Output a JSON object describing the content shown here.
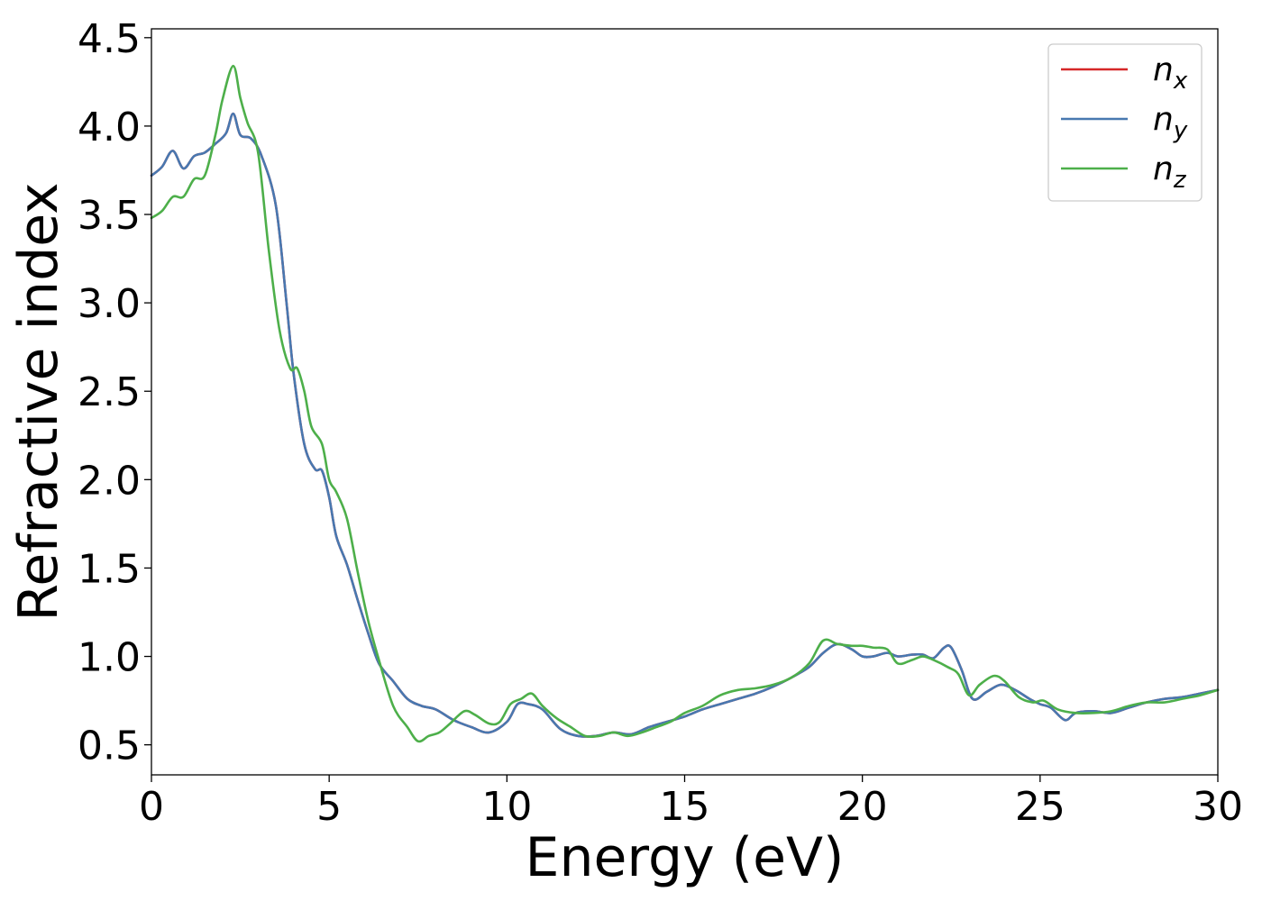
{
  "chart_data": {
    "type": "line",
    "title": "",
    "xlabel": "Energy (eV)",
    "ylabel": "Refractive index",
    "xlim": [
      0,
      30
    ],
    "ylim": [
      0.33,
      4.55
    ],
    "xticks": [
      0,
      5,
      10,
      15,
      20,
      25,
      30
    ],
    "yticks": [
      0.5,
      1.0,
      1.5,
      2.0,
      2.5,
      3.0,
      3.5,
      4.0,
      4.5
    ],
    "xtick_labels": [
      "0",
      "5",
      "10",
      "15",
      "20",
      "25",
      "30"
    ],
    "ytick_labels": [
      "0.5",
      "1.0",
      "1.5",
      "2.0",
      "2.5",
      "3.0",
      "3.5",
      "4.0",
      "4.5"
    ],
    "grid": false,
    "legend_position": "top-right",
    "series": [
      {
        "name": "n_x",
        "legend_base": "n",
        "legend_sub": "x",
        "color": "#d62728",
        "x": [
          0,
          0.3,
          0.6,
          0.9,
          1.2,
          1.5,
          1.8,
          2.1,
          2.3,
          2.5,
          2.8,
          3.1,
          3.5,
          3.8,
          4.0,
          4.3,
          4.6,
          4.8,
          5.0,
          5.2,
          5.5,
          5.8,
          6.1,
          6.4,
          6.8,
          7.2,
          7.6,
          8.0,
          8.5,
          9.0,
          9.5,
          10.0,
          10.3,
          10.6,
          11.0,
          11.5,
          12.0,
          12.5,
          13.0,
          13.5,
          14.0,
          14.5,
          15.0,
          15.5,
          16.0,
          16.5,
          17.0,
          17.5,
          18.0,
          18.5,
          18.9,
          19.3,
          19.7,
          20.0,
          20.3,
          20.7,
          21.0,
          21.4,
          21.7,
          22.0,
          22.3,
          22.5,
          22.8,
          23.1,
          23.5,
          23.9,
          24.3,
          24.7,
          25.0,
          25.3,
          25.7,
          26.0,
          26.5,
          27.0,
          27.5,
          28.0,
          28.5,
          29.0,
          29.5,
          30.0
        ],
        "y": [
          3.72,
          3.77,
          3.86,
          3.76,
          3.83,
          3.85,
          3.9,
          3.96,
          4.07,
          3.95,
          3.93,
          3.83,
          3.55,
          3.0,
          2.6,
          2.2,
          2.06,
          2.05,
          1.9,
          1.68,
          1.52,
          1.32,
          1.13,
          0.96,
          0.86,
          0.76,
          0.72,
          0.7,
          0.64,
          0.6,
          0.57,
          0.63,
          0.73,
          0.73,
          0.7,
          0.59,
          0.55,
          0.55,
          0.57,
          0.56,
          0.6,
          0.63,
          0.66,
          0.7,
          0.73,
          0.76,
          0.79,
          0.83,
          0.88,
          0.94,
          1.02,
          1.07,
          1.04,
          1.0,
          1.0,
          1.02,
          1.0,
          1.01,
          1.01,
          0.99,
          1.05,
          1.05,
          0.92,
          0.76,
          0.8,
          0.84,
          0.81,
          0.76,
          0.73,
          0.71,
          0.64,
          0.68,
          0.69,
          0.68,
          0.71,
          0.74,
          0.76,
          0.77,
          0.79,
          0.81
        ]
      },
      {
        "name": "n_y",
        "legend_base": "n",
        "legend_sub": "y",
        "color": "#4878b0",
        "x": [
          0,
          0.3,
          0.6,
          0.9,
          1.2,
          1.5,
          1.8,
          2.1,
          2.3,
          2.5,
          2.8,
          3.1,
          3.5,
          3.8,
          4.0,
          4.3,
          4.6,
          4.8,
          5.0,
          5.2,
          5.5,
          5.8,
          6.1,
          6.4,
          6.8,
          7.2,
          7.6,
          8.0,
          8.5,
          9.0,
          9.5,
          10.0,
          10.3,
          10.6,
          11.0,
          11.5,
          12.0,
          12.5,
          13.0,
          13.5,
          14.0,
          14.5,
          15.0,
          15.5,
          16.0,
          16.5,
          17.0,
          17.5,
          18.0,
          18.5,
          18.9,
          19.3,
          19.7,
          20.0,
          20.3,
          20.7,
          21.0,
          21.4,
          21.7,
          22.0,
          22.3,
          22.5,
          22.8,
          23.1,
          23.5,
          23.9,
          24.3,
          24.7,
          25.0,
          25.3,
          25.7,
          26.0,
          26.5,
          27.0,
          27.5,
          28.0,
          28.5,
          29.0,
          29.5,
          30.0
        ],
        "y": [
          3.72,
          3.77,
          3.86,
          3.76,
          3.83,
          3.85,
          3.9,
          3.96,
          4.07,
          3.95,
          3.93,
          3.83,
          3.55,
          3.0,
          2.6,
          2.2,
          2.06,
          2.05,
          1.9,
          1.68,
          1.52,
          1.32,
          1.13,
          0.96,
          0.86,
          0.76,
          0.72,
          0.7,
          0.64,
          0.6,
          0.57,
          0.63,
          0.73,
          0.73,
          0.7,
          0.59,
          0.55,
          0.55,
          0.57,
          0.56,
          0.6,
          0.63,
          0.66,
          0.7,
          0.73,
          0.76,
          0.79,
          0.83,
          0.88,
          0.94,
          1.02,
          1.07,
          1.04,
          1.0,
          1.0,
          1.02,
          1.0,
          1.01,
          1.01,
          0.99,
          1.05,
          1.05,
          0.92,
          0.76,
          0.8,
          0.84,
          0.81,
          0.76,
          0.73,
          0.71,
          0.64,
          0.68,
          0.69,
          0.68,
          0.71,
          0.74,
          0.76,
          0.77,
          0.79,
          0.81
        ]
      },
      {
        "name": "n_z",
        "legend_base": "n",
        "legend_sub": "z",
        "color": "#4daf4a",
        "x": [
          0,
          0.3,
          0.6,
          0.9,
          1.2,
          1.5,
          1.8,
          2.0,
          2.3,
          2.5,
          2.7,
          3.0,
          3.3,
          3.6,
          3.9,
          4.1,
          4.3,
          4.5,
          4.8,
          5.0,
          5.2,
          5.5,
          5.8,
          6.1,
          6.4,
          6.8,
          7.2,
          7.5,
          7.8,
          8.1,
          8.4,
          8.8,
          9.1,
          9.5,
          9.8,
          10.1,
          10.4,
          10.7,
          11.0,
          11.4,
          11.8,
          12.2,
          12.6,
          13.0,
          13.4,
          13.8,
          14.2,
          14.6,
          15.0,
          15.5,
          16.0,
          16.5,
          17.0,
          17.5,
          18.0,
          18.5,
          18.9,
          19.3,
          19.7,
          20.0,
          20.3,
          20.7,
          21.0,
          21.4,
          21.7,
          22.0,
          22.4,
          22.7,
          23.0,
          23.3,
          23.7,
          24.0,
          24.4,
          24.8,
          25.1,
          25.5,
          26.0,
          26.5,
          27.0,
          27.5,
          28.0,
          28.5,
          29.0,
          29.5,
          30.0
        ],
        "y": [
          3.48,
          3.52,
          3.6,
          3.6,
          3.7,
          3.72,
          3.95,
          4.15,
          4.34,
          4.16,
          4.02,
          3.85,
          3.3,
          2.85,
          2.63,
          2.63,
          2.5,
          2.3,
          2.2,
          2.0,
          1.93,
          1.78,
          1.48,
          1.2,
          0.98,
          0.72,
          0.6,
          0.52,
          0.55,
          0.57,
          0.62,
          0.69,
          0.67,
          0.62,
          0.63,
          0.73,
          0.76,
          0.79,
          0.72,
          0.65,
          0.6,
          0.55,
          0.55,
          0.57,
          0.55,
          0.57,
          0.6,
          0.63,
          0.68,
          0.72,
          0.78,
          0.81,
          0.82,
          0.84,
          0.88,
          0.96,
          1.09,
          1.07,
          1.06,
          1.06,
          1.05,
          1.04,
          0.96,
          0.98,
          1.0,
          0.98,
          0.94,
          0.9,
          0.78,
          0.84,
          0.89,
          0.86,
          0.77,
          0.74,
          0.75,
          0.7,
          0.68,
          0.68,
          0.69,
          0.72,
          0.74,
          0.74,
          0.76,
          0.78,
          0.81
        ]
      }
    ]
  }
}
